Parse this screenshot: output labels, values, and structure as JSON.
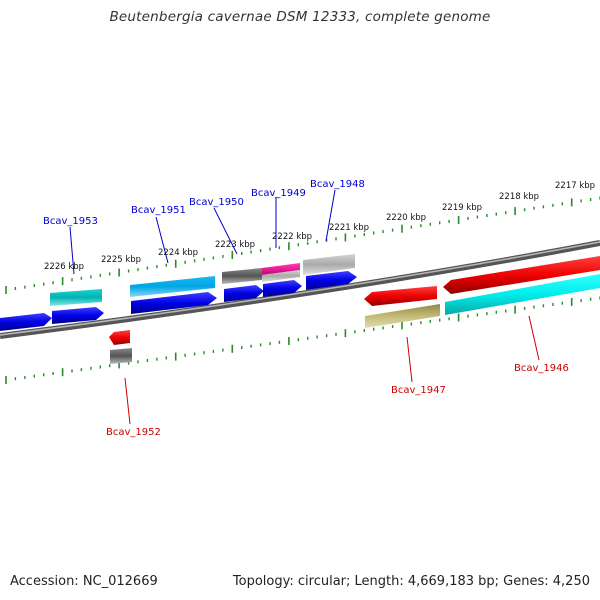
{
  "title": "Beutenbergia cavernae DSM 12333, complete genome",
  "footer": {
    "accession": "Accession: NC_012669",
    "summary": "Topology: circular; Length: 4,669,183 bp; Genes: 4,250"
  },
  "colors": {
    "forward_label": "#0000cc",
    "reverse_label": "#cc0000",
    "ruler": "#2a8a2a",
    "backbone": "#888888"
  },
  "ruler_labels": [
    "2217 kbp",
    "2218 kbp",
    "2219 kbp",
    "2220 kbp",
    "2221 kbp",
    "2222 kbp",
    "2223 kbp",
    "2224 kbp",
    "2225 kbp",
    "2226 kbp"
  ],
  "gene_labels": {
    "forward": [
      "Bcav_1953",
      "Bcav_1951",
      "Bcav_1950",
      "Bcav_1949",
      "Bcav_1948"
    ],
    "reverse": [
      "Bcav_1952",
      "Bcav_1947",
      "Bcav_1946"
    ]
  }
}
